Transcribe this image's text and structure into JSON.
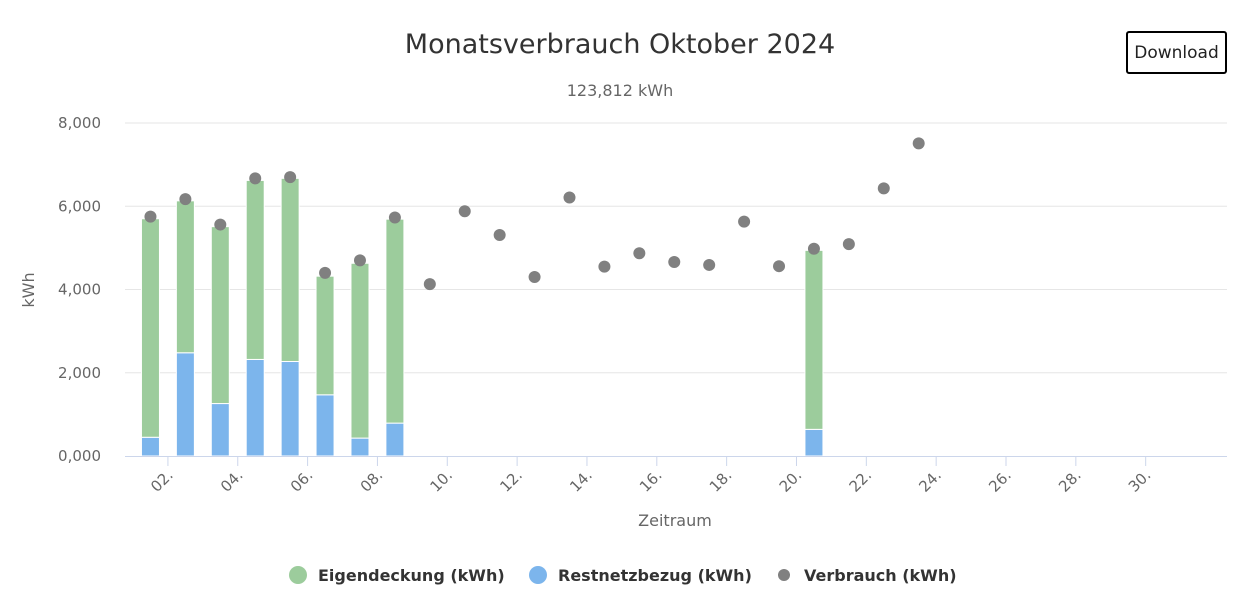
{
  "download_label": "Download",
  "chart_data": {
    "type": "bar",
    "title": "Monatsverbrauch Oktober 2024",
    "subtitle": "123,812 kWh",
    "xlabel": "Zeitraum",
    "ylabel": "kWh",
    "ylim": [
      0,
      8000
    ],
    "yticks": [
      {
        "value": 0,
        "label": "0,000"
      },
      {
        "value": 2000,
        "label": "2,000"
      },
      {
        "value": 4000,
        "label": "4,000"
      },
      {
        "value": 6000,
        "label": "6,000"
      },
      {
        "value": 8000,
        "label": "8,000"
      }
    ],
    "xticks": [
      "02.",
      "04.",
      "06.",
      "08.",
      "10.",
      "12.",
      "14.",
      "16.",
      "18.",
      "20.",
      "22.",
      "24.",
      "26.",
      "28.",
      "30."
    ],
    "days": [
      1,
      2,
      3,
      4,
      5,
      6,
      7,
      8,
      9,
      10,
      11,
      12,
      13,
      14,
      15,
      16,
      17,
      18,
      19,
      20,
      21,
      22,
      23,
      24,
      25,
      26,
      27,
      28,
      29,
      30,
      31
    ],
    "grid": true,
    "legend_position": "bottom",
    "series": [
      {
        "name": "Eigendeckung (kWh)",
        "kind": "bar",
        "color": "#9ccc9c",
        "values": [
          5250,
          3650,
          4250,
          4300,
          4400,
          2850,
          4200,
          4900,
          null,
          null,
          null,
          null,
          null,
          null,
          null,
          null,
          null,
          null,
          null,
          4300,
          null,
          null,
          null,
          null,
          null,
          null,
          null,
          null,
          null,
          null,
          null
        ]
      },
      {
        "name": "Restnetzbezug (kWh)",
        "kind": "bar",
        "color": "#7cb5ec",
        "values": [
          450,
          2480,
          1260,
          2320,
          2270,
          1470,
          430,
          790,
          null,
          null,
          null,
          null,
          null,
          null,
          null,
          null,
          null,
          null,
          null,
          640,
          null,
          null,
          null,
          null,
          null,
          null,
          null,
          null,
          null,
          null,
          null
        ]
      },
      {
        "name": "Verbrauch (kWh)",
        "kind": "scatter",
        "color": "#808080",
        "values": [
          5750,
          6170,
          5560,
          6670,
          6700,
          4400,
          4700,
          5730,
          4130,
          5880,
          5310,
          4300,
          6210,
          4550,
          4870,
          4660,
          4590,
          5630,
          4560,
          4980,
          5090,
          6430,
          7510,
          null,
          null,
          null,
          null,
          null,
          null,
          null,
          null
        ]
      }
    ]
  }
}
